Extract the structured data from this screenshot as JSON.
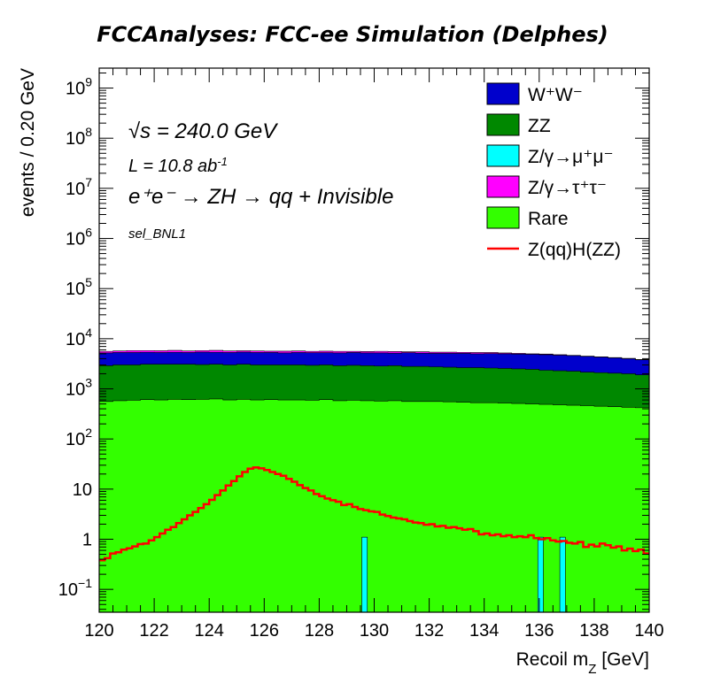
{
  "chart_data": {
    "type": "area",
    "title": "FCCAnalyses: FCC-ee Simulation (Delphes)",
    "xlabel": "Recoil m_Z [GeV]",
    "ylabel": "events / 0.20 GeV",
    "xlim": [
      120,
      140
    ],
    "ylim": [
      0.035,
      2500000000
    ],
    "yscale": "log",
    "x_ticks": [
      "120",
      "122",
      "124",
      "126",
      "128",
      "130",
      "132",
      "134",
      "136",
      "138",
      "140"
    ],
    "y_ticks": [
      {
        "value": 0.1,
        "base": "10",
        "exp": "−1"
      },
      {
        "value": 1,
        "label": "1"
      },
      {
        "value": 10,
        "label": "10"
      },
      {
        "value": 100,
        "base": "10",
        "exp": "2"
      },
      {
        "value": 1000,
        "base": "10",
        "exp": "3"
      },
      {
        "value": 10000,
        "base": "10",
        "exp": "4"
      },
      {
        "value": 100000,
        "base": "10",
        "exp": "5"
      },
      {
        "value": 1000000,
        "base": "10",
        "exp": "6"
      },
      {
        "value": 10000000,
        "base": "10",
        "exp": "7"
      },
      {
        "value": 100000000,
        "base": "10",
        "exp": "8"
      },
      {
        "value": 1000000000,
        "base": "10",
        "exp": "9"
      }
    ],
    "annotations": {
      "sqrt_s": "√s = 240.0 GeV",
      "lumi": "L = 10.8 ab",
      "lumi_exp": "-1",
      "process": "e⁺e⁻ → ZH → qq + Invisible",
      "selection": "sel_BNL1"
    },
    "legend_position": "top-right",
    "stack_order": [
      "Rare",
      "Z/γ→τ⁺τ⁻",
      "Z/γ→μ⁺μ⁻",
      "ZZ",
      "W⁺W⁻"
    ],
    "x_bins": [
      120,
      120.5,
      121,
      121.5,
      122,
      122.5,
      123,
      123.5,
      124,
      124.5,
      125,
      125.5,
      126,
      126.5,
      127,
      127.5,
      128,
      128.5,
      129,
      129.5,
      130,
      130.5,
      131,
      131.5,
      132,
      132.5,
      133,
      133.5,
      134,
      134.5,
      135,
      135.5,
      136,
      136.5,
      137,
      137.5,
      138,
      138.5,
      139,
      139.5,
      140
    ],
    "series": [
      {
        "name": "W⁺W⁻",
        "label_html": "W<tspan baseline-shift='super' font-size='14'>+</tspan>W<tspan baseline-shift='super' font-size='14'>-</tspan>",
        "color": "#0000cc",
        "type": "stack",
        "stack_top": [
          5200,
          5300,
          5300,
          5350,
          5300,
          5350,
          5300,
          5400,
          5350,
          5300,
          5400,
          5300,
          5300,
          5200,
          5300,
          5250,
          5250,
          5200,
          5300,
          5200,
          5200,
          5150,
          5250,
          5150,
          5100,
          5100,
          5100,
          5000,
          5050,
          5000,
          4950,
          4900,
          4800,
          4700,
          4600,
          4450,
          4300,
          4150,
          4000,
          3800
        ]
      },
      {
        "name": "ZZ",
        "color": "#008800",
        "type": "stack",
        "stack_top": [
          2900,
          3000,
          3000,
          3100,
          3100,
          3100,
          3100,
          3050,
          3100,
          3000,
          3100,
          3000,
          3000,
          3000,
          3000,
          2950,
          3000,
          2900,
          2950,
          2900,
          2850,
          2900,
          2800,
          2800,
          2750,
          2700,
          2650,
          2650,
          2600,
          2550,
          2500,
          2450,
          2350,
          2300,
          2250,
          2150,
          2100,
          2050,
          2000,
          1900
        ]
      },
      {
        "name": "Z/γ→μ⁺μ⁻",
        "color": "#00ffff",
        "type": "spikes",
        "spikes": [
          {
            "x": 129.65,
            "y": 1.1
          },
          {
            "x": 136.05,
            "y": 1.1
          },
          {
            "x": 136.85,
            "y": 1.1
          }
        ]
      },
      {
        "name": "Z/γ→τ⁺τ⁻",
        "color": "#ff00ff",
        "type": "stack",
        "stack_top": [
          5600,
          5700,
          5800,
          5800,
          5750,
          5850,
          5700,
          5800,
          5850,
          5700,
          5750,
          5700,
          5650,
          5650,
          5700,
          5600,
          5650,
          5600,
          5600,
          5550,
          5600,
          5550,
          5500,
          5500,
          5400,
          5400,
          5350,
          5300,
          5300,
          5200,
          5100,
          5000,
          4950,
          4800,
          4650,
          4500,
          4350,
          4200,
          4050,
          3850
        ]
      },
      {
        "name": "Rare",
        "color": "#33ff00",
        "type": "stack",
        "stack_top": [
          560,
          580,
          590,
          610,
          600,
          620,
          610,
          620,
          630,
          600,
          620,
          600,
          610,
          600,
          600,
          590,
          610,
          580,
          590,
          580,
          570,
          580,
          560,
          560,
          560,
          550,
          540,
          530,
          530,
          520,
          510,
          500,
          490,
          480,
          470,
          460,
          450,
          440,
          430,
          420
        ]
      },
      {
        "name": "Z(qq)H(ZZ)",
        "color": "#ff0000",
        "type": "line",
        "x": [
          120,
          120.2,
          120.4,
          120.6,
          120.8,
          121,
          121.2,
          121.4,
          121.6,
          121.8,
          122,
          122.2,
          122.4,
          122.6,
          122.8,
          123,
          123.2,
          123.4,
          123.6,
          123.8,
          124,
          124.2,
          124.4,
          124.6,
          124.8,
          125,
          125.2,
          125.4,
          125.6,
          125.8,
          126,
          126.2,
          126.4,
          126.6,
          126.8,
          127,
          127.2,
          127.4,
          127.6,
          127.8,
          128,
          128.2,
          128.4,
          128.6,
          128.8,
          129,
          129.2,
          129.4,
          129.6,
          129.8,
          130,
          130.2,
          130.4,
          130.6,
          130.8,
          131,
          131.2,
          131.4,
          131.6,
          131.8,
          132,
          132.2,
          132.4,
          132.6,
          132.8,
          133,
          133.2,
          133.4,
          133.6,
          133.8,
          134,
          134.2,
          134.4,
          134.6,
          134.8,
          135,
          135.2,
          135.4,
          135.6,
          135.8,
          136,
          136.2,
          136.4,
          136.6,
          136.8,
          137,
          137.2,
          137.4,
          137.6,
          137.8,
          138,
          138.2,
          138.4,
          138.6,
          138.8,
          139,
          139.2,
          139.4,
          139.6,
          139.8
        ],
        "values": [
          0.38,
          0.42,
          0.52,
          0.55,
          0.62,
          0.66,
          0.72,
          0.8,
          0.82,
          0.95,
          1.1,
          1.3,
          1.55,
          1.75,
          2.1,
          2.5,
          3.0,
          3.5,
          4.2,
          5.0,
          6.1,
          7.6,
          9.4,
          11.8,
          14.5,
          18.0,
          22.0,
          25.5,
          27.0,
          26.0,
          24.0,
          22.0,
          20.0,
          18.5,
          16.0,
          14.0,
          12.0,
          10.5,
          9.4,
          8.0,
          7.2,
          6.5,
          6.0,
          5.6,
          4.8,
          5.0,
          4.4,
          4.0,
          3.8,
          3.6,
          3.5,
          3.1,
          2.9,
          2.7,
          2.6,
          2.5,
          2.3,
          2.15,
          2.1,
          1.95,
          2.0,
          1.8,
          1.85,
          1.7,
          1.75,
          1.65,
          1.55,
          1.6,
          1.45,
          1.25,
          1.3,
          1.2,
          1.25,
          1.15,
          1.2,
          1.1,
          1.15,
          1.1,
          1.2,
          1.05,
          1.0,
          1.05,
          0.95,
          0.9,
          0.92,
          0.85,
          0.82,
          0.88,
          0.7,
          0.78,
          0.72,
          0.82,
          0.76,
          0.68,
          0.72,
          0.6,
          0.65,
          0.58,
          0.62,
          0.52
        ]
      }
    ]
  }
}
